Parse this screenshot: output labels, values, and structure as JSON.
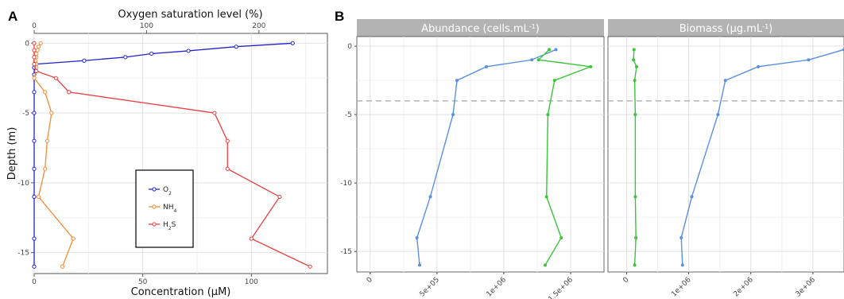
{
  "panel_a_label": "A",
  "panel_b_label": "B",
  "chart_data": [
    {
      "type": "line",
      "panel": "A",
      "xlabel": "Concentration (µM)",
      "xlabel_top": "Oxygen saturation level (%)",
      "ylabel": "Depth (m)",
      "xlim": [
        0,
        135
      ],
      "ylim": [
        -16.5,
        0.7
      ],
      "x_ticks": [
        0,
        50,
        100
      ],
      "x_ticks_top": [
        0,
        100,
        200
      ],
      "y_ticks": [
        0,
        -5,
        -10,
        -15
      ],
      "legend_position": "center-right",
      "series": [
        {
          "name": "O2",
          "legend_label": "O",
          "legend_sub": "2",
          "color": "#2222cc",
          "points": [
            [
              119,
              0
            ],
            [
              93,
              -0.25
            ],
            [
              71,
              -0.55
            ],
            [
              54,
              -0.75
            ],
            [
              42,
              -1.0
            ],
            [
              23,
              -1.25
            ],
            [
              1,
              -1.5
            ],
            [
              0,
              -1.75
            ],
            [
              0,
              -2.25
            ],
            [
              0,
              -3.5
            ],
            [
              0,
              -5
            ],
            [
              0,
              -7
            ],
            [
              0,
              -9
            ],
            [
              0,
              -11
            ],
            [
              0,
              -14
            ],
            [
              0,
              -16
            ]
          ]
        },
        {
          "name": "NH4",
          "legend_label": "NH",
          "legend_sub": "4",
          "color": "#f28c38",
          "points": [
            [
              3,
              0
            ],
            [
              2,
              -0.25
            ],
            [
              1.5,
              -0.5
            ],
            [
              1,
              -0.75
            ],
            [
              1,
              -1
            ],
            [
              0.5,
              -1.25
            ],
            [
              1,
              -1.5
            ],
            [
              1,
              -1.75
            ],
            [
              1,
              -2
            ],
            [
              0,
              -2.5
            ],
            [
              5,
              -3.5
            ],
            [
              8,
              -5
            ],
            [
              6,
              -7
            ],
            [
              5,
              -9
            ],
            [
              2,
              -11
            ],
            [
              18,
              -14
            ],
            [
              13,
              -16
            ]
          ]
        },
        {
          "name": "H2S",
          "legend_label": "H",
          "legend_sub": "2",
          "legend_suffix": "S",
          "color": "#e84040",
          "points": [
            [
              0,
              0
            ],
            [
              0,
              -0.5
            ],
            [
              0,
              -1
            ],
            [
              0,
              -1.5
            ],
            [
              1,
              -2
            ],
            [
              10,
              -2.5
            ],
            [
              16,
              -3.5
            ],
            [
              83,
              -5
            ],
            [
              89,
              -7
            ],
            [
              89,
              -9
            ],
            [
              113,
              -11
            ],
            [
              100,
              -14
            ],
            [
              127,
              -16
            ]
          ]
        }
      ]
    },
    {
      "type": "line",
      "panel": "B-left",
      "strip_title": "Abundance (cells.mL",
      "strip_sup": "-1",
      "strip_close": ")",
      "xlim": [
        -100000,
        1750000
      ],
      "ylim": [
        -16.5,
        0.7
      ],
      "x_ticks": [
        0,
        500000,
        1000000,
        1500000
      ],
      "x_tick_labels": [
        "0",
        "5e+05",
        "1e+06",
        "1.5e+06"
      ],
      "y_ticks": [
        0,
        -5,
        -10,
        -15
      ],
      "hline": -4,
      "series": [
        {
          "color": "#5b8fe0",
          "points": [
            [
              1390000,
              -0.25
            ],
            [
              1210000,
              -1.0
            ],
            [
              870000,
              -1.5
            ],
            [
              650000,
              -2.5
            ],
            [
              620000,
              -5
            ],
            [
              450000,
              -11
            ],
            [
              350000,
              -14
            ],
            [
              370000,
              -16
            ]
          ]
        },
        {
          "color": "#3cc43c",
          "points": [
            [
              1340000,
              -0.25
            ],
            [
              1260000,
              -1.0
            ],
            [
              1650000,
              -1.5
            ],
            [
              1380000,
              -2.5
            ],
            [
              1330000,
              -5
            ],
            [
              1320000,
              -11
            ],
            [
              1430000,
              -14
            ],
            [
              1310000,
              -16
            ]
          ]
        }
      ]
    },
    {
      "type": "line",
      "panel": "B-right",
      "strip_title": "Biomass (µg.mL",
      "strip_sup": "-1",
      "strip_close": ")",
      "xlim": [
        -300000,
        3500000
      ],
      "ylim": [
        -16.5,
        0.7
      ],
      "x_ticks": [
        0,
        1000000,
        2000000,
        3000000
      ],
      "x_tick_labels": [
        "0",
        "1e+06",
        "2e+06",
        "3e+06"
      ],
      "hline": -4,
      "series": [
        {
          "color": "#5b8fe0",
          "points": [
            [
              3500000,
              -0.25
            ],
            [
              2930000,
              -1.0
            ],
            [
              2120000,
              -1.5
            ],
            [
              1590000,
              -2.5
            ],
            [
              1470000,
              -5
            ],
            [
              1050000,
              -11
            ],
            [
              880000,
              -14
            ],
            [
              900000,
              -16
            ]
          ]
        },
        {
          "color": "#3cc43c",
          "points": [
            [
              120000,
              -0.25
            ],
            [
              110000,
              -1.0
            ],
            [
              160000,
              -1.5
            ],
            [
              130000,
              -2.5
            ],
            [
              140000,
              -5
            ],
            [
              140000,
              -11
            ],
            [
              150000,
              -14
            ],
            [
              130000,
              -16
            ]
          ]
        }
      ]
    }
  ]
}
